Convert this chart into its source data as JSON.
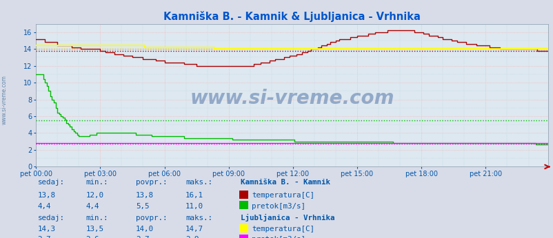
{
  "title": "Kamniška B. - Kamnik & Ljubljanica - Vrhnika",
  "title_color": "#0055cc",
  "bg_color": "#d8dce8",
  "plot_bg_color": "#dde8f0",
  "grid_color_major": "#ff9999",
  "grid_color_minor": "#ccddee",
  "watermark": "www.si-vreme.com",
  "tick_color": "#0055aa",
  "xlabels": [
    "pet 00:00",
    "pet 03:00",
    "pet 06:00",
    "pet 09:00",
    "pet 12:00",
    "pet 15:00",
    "pet 18:00",
    "pet 21:00"
  ],
  "n_points": 288,
  "ylim": [
    0,
    17
  ],
  "yticks": [
    0,
    2,
    4,
    6,
    8,
    10,
    12,
    14,
    16
  ],
  "kamnik_temp_color": "#aa0000",
  "kamnik_temp_avg": 13.8,
  "kamnik_pretok_color": "#00bb00",
  "kamnik_pretok_avg": 5.5,
  "vrhnika_temp_color": "#ffff00",
  "vrhnika_temp_avg": 14.0,
  "vrhnika_pretok_color": "#ff00ff",
  "vrhnika_pretok_avg": 2.7,
  "legend_text_color": "#0055aa",
  "table_bg": "#e8ecf8"
}
